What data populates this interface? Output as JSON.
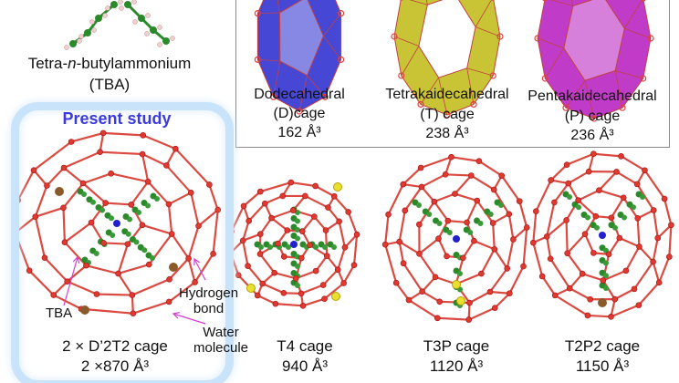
{
  "molecule": {
    "name": "Tetra-n-butylammonium",
    "name_prefix": "Tetra-",
    "name_italic": "n",
    "name_suffix": "-butylammonium",
    "abbrev": "(TBA)"
  },
  "polyhedra": [
    {
      "name": "Dodecahedral",
      "label": "(D)cage",
      "volume": "162 Å³",
      "color": "#4747d6"
    },
    {
      "name": "Tetrakaidecahedral",
      "label": "(T) cage",
      "volume": "238 Å³",
      "color": "#c9c436"
    },
    {
      "name": "Pentakaidecahedral",
      "label": "(P) cage",
      "volume": "236 Å³",
      "color": "#c03cc8"
    }
  ],
  "highlight": {
    "title": "Present study",
    "color": "#3a3adf"
  },
  "annotations": {
    "tba": "TBA",
    "hbond": "Hydrogen bond",
    "hbond_1": "Hydrogen",
    "hbond_2": "bond",
    "water_1": "Water",
    "water_2": "molecule"
  },
  "cages": [
    {
      "label": "2 × D’2T2 cage",
      "volume": "2 ×870 Å³"
    },
    {
      "label": "T4 cage",
      "volume": "940 Å³"
    },
    {
      "label": "T3P cage",
      "volume": "1120 Å³"
    },
    {
      "label": "T2P2 cage",
      "volume": "1150 Å³"
    }
  ],
  "colors": {
    "water_framework": "#d42a20",
    "tba_carbon": "#2a8a2a",
    "nitrogen": "#2222cc",
    "box_border": "#8a8a8a",
    "glow": "#c9e3fb"
  }
}
